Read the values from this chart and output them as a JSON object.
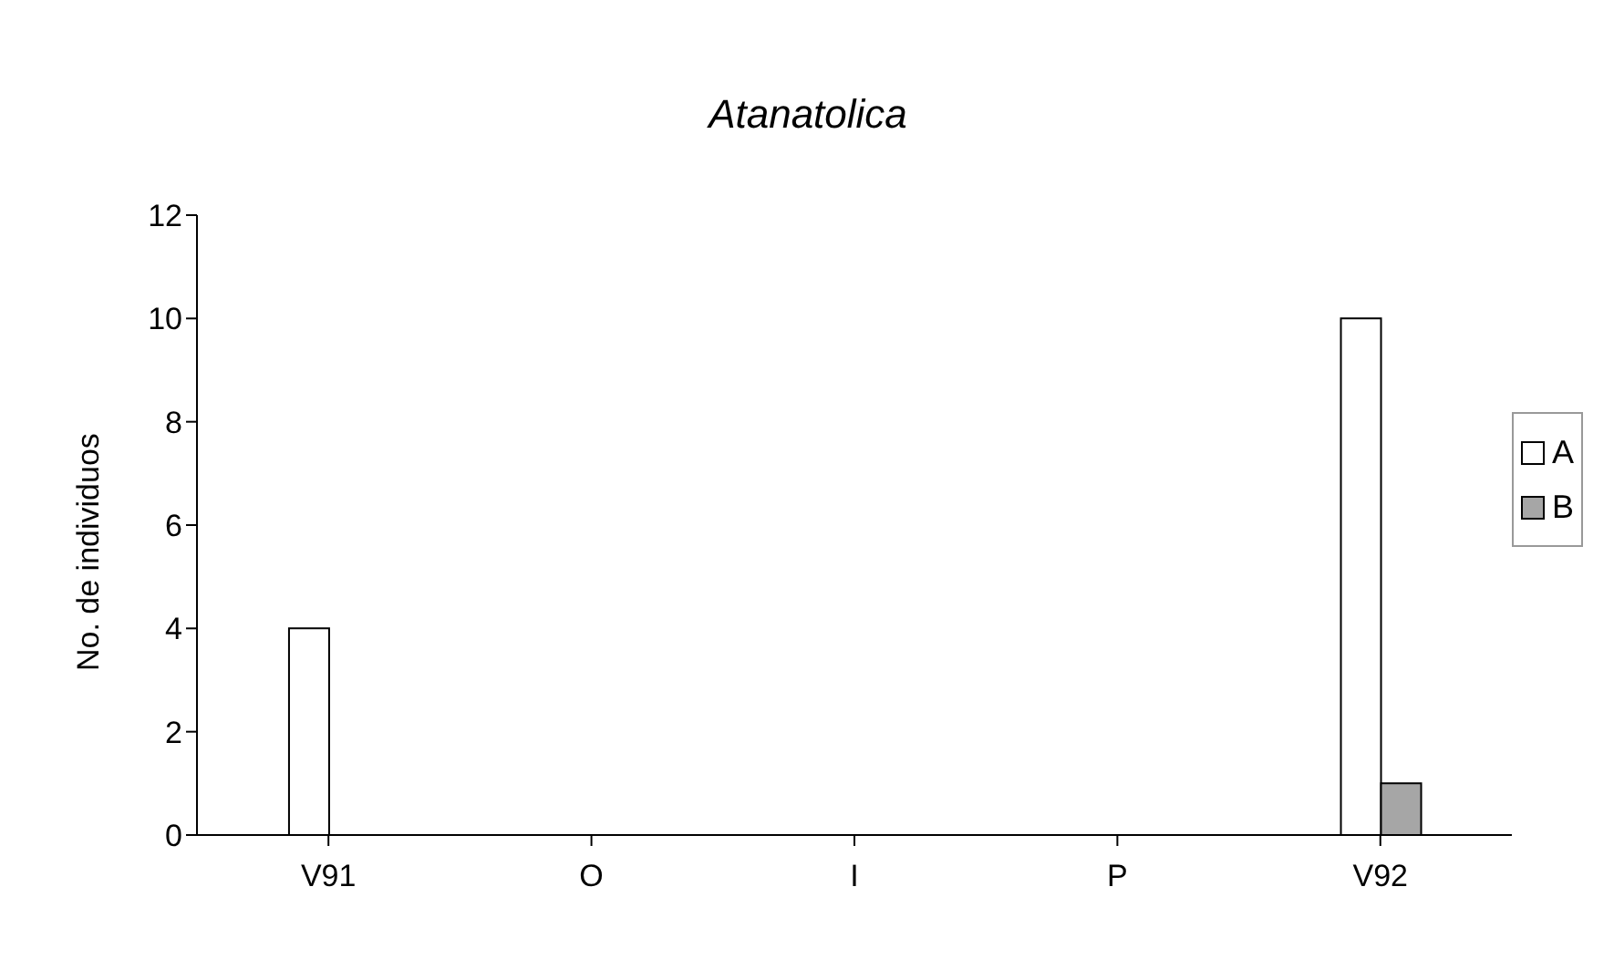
{
  "chart_data": {
    "type": "bar",
    "title": "Atanatolica",
    "ylabel": "No. de individuos",
    "categories": [
      "V91",
      "O",
      "I",
      "P",
      "V92"
    ],
    "series": [
      {
        "name": "A",
        "color": "#ffffff",
        "values": [
          4,
          0,
          0,
          0,
          10
        ]
      },
      {
        "name": "B",
        "color": "#a6a6a6",
        "values": [
          0,
          0,
          0,
          0,
          1
        ]
      }
    ],
    "ylim": [
      0,
      12
    ],
    "yticks": [
      0,
      2,
      4,
      6,
      8,
      10,
      12
    ],
    "grid": false,
    "legend": "right"
  }
}
